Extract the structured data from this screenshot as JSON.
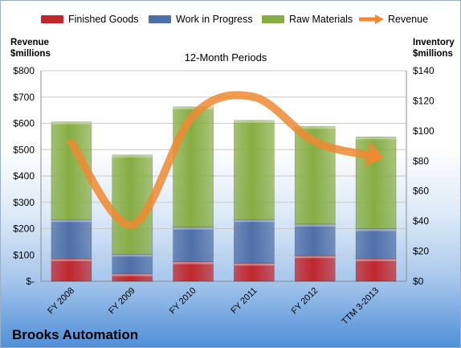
{
  "chart_data": {
    "type": "bar",
    "stacked": true,
    "subtitle": "12-Month Periods",
    "company": "Brooks Automation",
    "categories": [
      "FY 2008",
      "FY 2009",
      "FY 2010",
      "FY 2011",
      "FY 2012",
      "TTM 3-2013"
    ],
    "series": [
      {
        "name": "Finished Goods",
        "color": "#c0272d",
        "axis": "right",
        "values": [
          15,
          5,
          13,
          12,
          17,
          15
        ]
      },
      {
        "name": "Work in Progress",
        "color": "#4f6fa8",
        "axis": "right",
        "values": [
          26,
          13,
          23,
          29,
          21,
          20
        ]
      },
      {
        "name": "Raw Materials",
        "color": "#86ad42",
        "axis": "right",
        "values": [
          65,
          66,
          80,
          66,
          65,
          61
        ]
      },
      {
        "name": "Revenue",
        "color": "#ef8a32",
        "axis": "left",
        "type": "line",
        "values": [
          526,
          215,
          630,
          700,
          530,
          475
        ]
      }
    ],
    "ylabel_left": [
      "Revenue",
      "$millions"
    ],
    "ylabel_right": [
      "Inventory",
      "$millions"
    ],
    "ylim_left": [
      0,
      800
    ],
    "ylim_right": [
      0,
      140
    ],
    "yticks_left": [
      "$-",
      "$100",
      "$200",
      "$300",
      "$400",
      "$500",
      "$600",
      "$700",
      "$800"
    ],
    "yticks_right": [
      "$0",
      "$20",
      "$40",
      "$60",
      "$80",
      "$100",
      "$120",
      "$140"
    ],
    "grid": true,
    "legend": "top"
  }
}
